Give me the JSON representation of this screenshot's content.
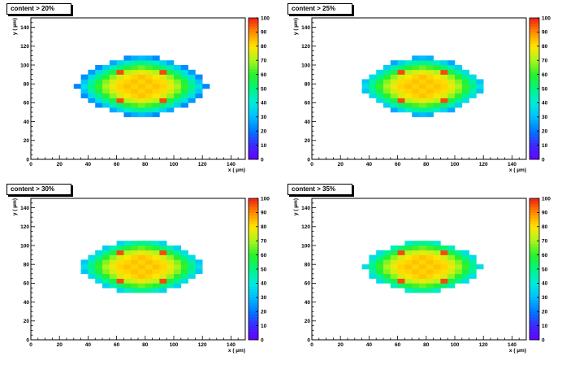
{
  "chart_data": [
    {
      "type": "heatmap",
      "title": "content > 20%",
      "xlabel": "x ( µm)",
      "ylabel": "y ( µm)",
      "xlim": [
        0,
        150
      ],
      "ylim": [
        0,
        150
      ],
      "x_ticks": [
        "0",
        "20",
        "40",
        "60",
        "80",
        "100",
        "120",
        "140"
      ],
      "y_ticks": [
        "0",
        "20",
        "40",
        "60",
        "80",
        "100",
        "120",
        "140"
      ],
      "colorbar": {
        "range": [
          0,
          100
        ],
        "ticks": [
          "0",
          "10",
          "20",
          "30",
          "40",
          "50",
          "60",
          "70",
          "80",
          "90",
          "100"
        ]
      },
      "bin_size": 5,
      "threshold": 20,
      "cells": []
    },
    {
      "type": "heatmap",
      "title": "content > 25%",
      "xlabel": "x ( µm)",
      "ylabel": "y ( µm)",
      "xlim": [
        0,
        150
      ],
      "ylim": [
        0,
        150
      ],
      "x_ticks": [
        "0",
        "20",
        "40",
        "60",
        "80",
        "100",
        "120",
        "140"
      ],
      "y_ticks": [
        "0",
        "20",
        "40",
        "60",
        "80",
        "100",
        "120",
        "140"
      ],
      "colorbar": {
        "range": [
          0,
          100
        ],
        "ticks": [
          "0",
          "10",
          "20",
          "30",
          "40",
          "50",
          "60",
          "70",
          "80",
          "90",
          "100"
        ]
      },
      "bin_size": 5,
      "threshold": 25,
      "cells": []
    },
    {
      "type": "heatmap",
      "title": "content > 30%",
      "xlabel": "x ( µm)",
      "ylabel": "y ( µm)",
      "xlim": [
        0,
        150
      ],
      "ylim": [
        0,
        150
      ],
      "x_ticks": [
        "0",
        "20",
        "40",
        "60",
        "80",
        "100",
        "120",
        "140"
      ],
      "y_ticks": [
        "0",
        "20",
        "40",
        "60",
        "80",
        "100",
        "120",
        "140"
      ],
      "colorbar": {
        "range": [
          0,
          100
        ],
        "ticks": [
          "0",
          "10",
          "20",
          "30",
          "40",
          "50",
          "60",
          "70",
          "80",
          "90",
          "100"
        ]
      },
      "bin_size": 5,
      "threshold": 30,
      "cells": []
    },
    {
      "type": "heatmap",
      "title": "content > 35%",
      "xlabel": "x ( µm)",
      "ylabel": "y ( µm)",
      "xlim": [
        0,
        150
      ],
      "ylim": [
        0,
        150
      ],
      "x_ticks": [
        "0",
        "20",
        "40",
        "60",
        "80",
        "100",
        "120",
        "140"
      ],
      "y_ticks": [
        "0",
        "20",
        "40",
        "60",
        "80",
        "100",
        "120",
        "140"
      ],
      "colorbar": {
        "range": [
          0,
          100
        ],
        "ticks": [
          "0",
          "10",
          "20",
          "30",
          "40",
          "50",
          "60",
          "70",
          "80",
          "90",
          "100"
        ]
      },
      "bin_size": 5,
      "threshold": 35,
      "cells": []
    }
  ]
}
